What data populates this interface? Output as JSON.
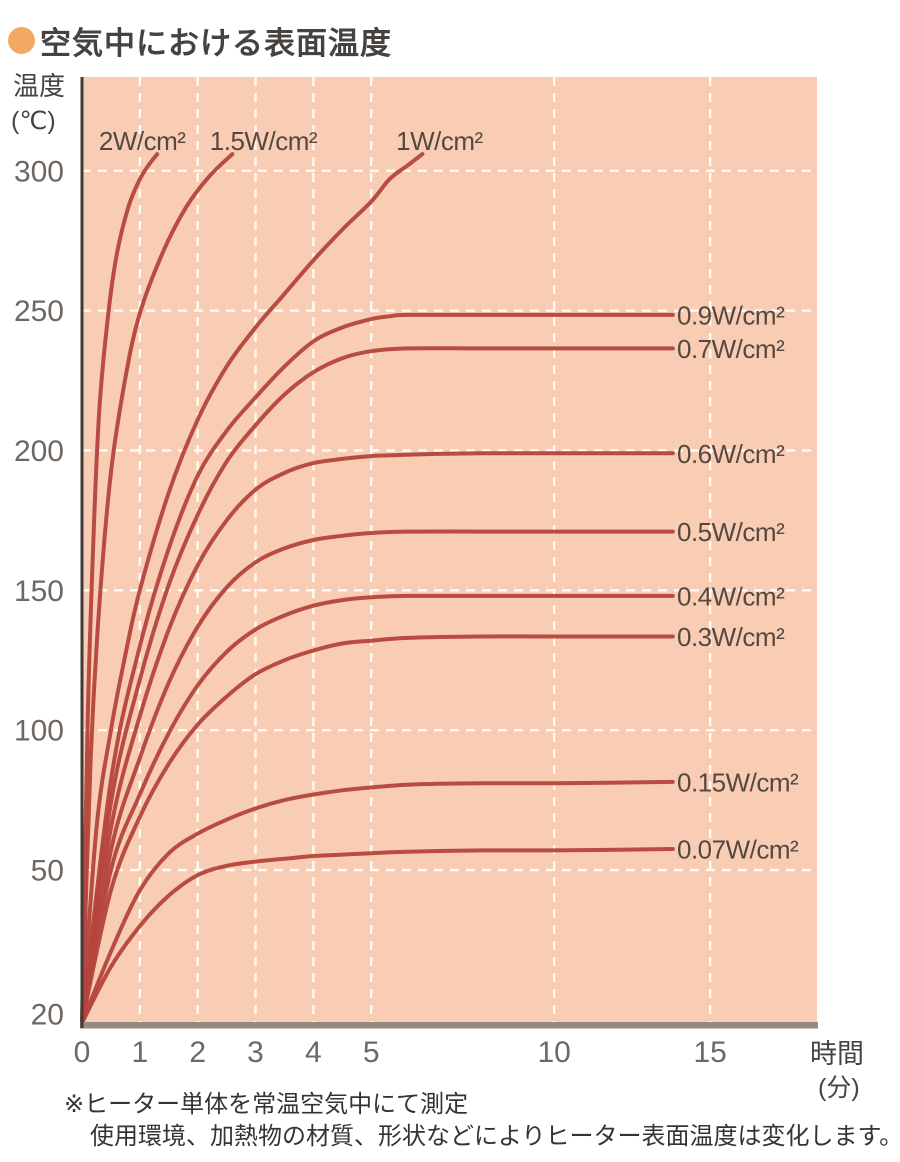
{
  "header": {
    "title": "空気中における表面温度"
  },
  "axes": {
    "y_name": "温度",
    "y_unit": "(℃)",
    "x_name": "時間",
    "x_unit": "(分)"
  },
  "footnotes": {
    "line1": "※ヒーター単体を常温空気中にて測定",
    "line2": "使用環境、加熱物の材質、形状などによりヒーター表面温度は変化します。"
  },
  "colors": {
    "bullet": "#f4a963",
    "plot_bg": "#f8cdb4",
    "grid": "#ffffff",
    "curve": "#b4453d",
    "y_axis": "#413c3a",
    "x_axis_bar": "#958983",
    "tick_text": "#6e6762",
    "curve_label_text": "#564840"
  },
  "chart_data": {
    "type": "line",
    "title": "空気中における表面温度",
    "xlabel": "時間(分)",
    "ylabel": "温度(℃)",
    "x_ticks": [
      0,
      1,
      2,
      3,
      4,
      5,
      10,
      15
    ],
    "y_ticks": [
      300,
      250,
      200,
      150,
      100,
      50,
      20
    ],
    "xlim": [
      0,
      15.8
    ],
    "ylim": [
      20,
      310
    ],
    "grid": "white dashed, on",
    "legend_position": "labels at line ends",
    "x_scale_note": "x axis compressed beyond 5 minutes",
    "start_temperature": 20,
    "series": [
      {
        "name": "2W/cm²",
        "exits_top": true,
        "points": [
          [
            0,
            20
          ],
          [
            0.1,
            105
          ],
          [
            0.2,
            170
          ],
          [
            0.3,
            215
          ],
          [
            0.45,
            248
          ],
          [
            0.6,
            270
          ],
          [
            0.8,
            287
          ],
          [
            1,
            297
          ],
          [
            1.15,
            302
          ],
          [
            1.3,
            306
          ]
        ]
      },
      {
        "name": "1.5W/cm²",
        "exits_top": true,
        "points": [
          [
            0,
            20
          ],
          [
            0.15,
            90
          ],
          [
            0.3,
            145
          ],
          [
            0.5,
            192
          ],
          [
            0.75,
            226
          ],
          [
            1,
            249
          ],
          [
            1.4,
            271
          ],
          [
            1.8,
            287
          ],
          [
            2.2,
            298
          ],
          [
            2.6,
            306
          ]
        ]
      },
      {
        "name": "1W/cm²",
        "exits_top": true,
        "points": [
          [
            0,
            20
          ],
          [
            0.25,
            65
          ],
          [
            0.5,
            100
          ],
          [
            0.75,
            127
          ],
          [
            1,
            150
          ],
          [
            1.5,
            185
          ],
          [
            2,
            211
          ],
          [
            2.5,
            230
          ],
          [
            3,
            244
          ],
          [
            3.5,
            256
          ],
          [
            4,
            268
          ],
          [
            4.5,
            279
          ],
          [
            5,
            289
          ],
          [
            5.5,
            297
          ],
          [
            6,
            302
          ],
          [
            6.4,
            306
          ]
        ]
      },
      {
        "name": "0.9W/cm²",
        "plateau": 248,
        "points": [
          [
            0,
            20
          ],
          [
            0.5,
            82
          ],
          [
            1,
            130
          ],
          [
            1.5,
            165
          ],
          [
            2,
            191
          ],
          [
            2.5,
            207
          ],
          [
            3,
            219
          ],
          [
            3.5,
            230
          ],
          [
            4,
            239
          ],
          [
            4.5,
            244
          ],
          [
            5,
            247
          ],
          [
            5.5,
            248
          ],
          [
            6,
            248.5
          ],
          [
            8,
            248.5
          ],
          [
            10,
            248.5
          ],
          [
            13.8,
            248.5
          ]
        ]
      },
      {
        "name": "0.7W/cm²",
        "plateau": 236,
        "points": [
          [
            0,
            20
          ],
          [
            0.5,
            74
          ],
          [
            1,
            118
          ],
          [
            1.5,
            152
          ],
          [
            2,
            177
          ],
          [
            2.5,
            196
          ],
          [
            3,
            209
          ],
          [
            3.5,
            220
          ],
          [
            4,
            228
          ],
          [
            4.5,
            233
          ],
          [
            5,
            235.5
          ],
          [
            6,
            236.5
          ],
          [
            8,
            236.5
          ],
          [
            10,
            236.5
          ],
          [
            13.8,
            236.5
          ]
        ]
      },
      {
        "name": "0.6W/cm²",
        "plateau": 199,
        "points": [
          [
            0,
            20
          ],
          [
            0.5,
            65
          ],
          [
            1,
            105
          ],
          [
            1.5,
            136
          ],
          [
            2,
            159
          ],
          [
            2.5,
            175
          ],
          [
            3,
            186
          ],
          [
            3.5,
            192
          ],
          [
            4,
            195.5
          ],
          [
            4.5,
            197
          ],
          [
            5,
            198
          ],
          [
            6,
            198.5
          ],
          [
            8,
            199
          ],
          [
            10,
            199
          ],
          [
            13.8,
            199
          ]
        ]
      },
      {
        "name": "0.5W/cm²",
        "plateau": 171,
        "points": [
          [
            0,
            20
          ],
          [
            0.5,
            57
          ],
          [
            1,
            90
          ],
          [
            1.5,
            117
          ],
          [
            2,
            137
          ],
          [
            2.5,
            151
          ],
          [
            3,
            160
          ],
          [
            3.5,
            165
          ],
          [
            4,
            168
          ],
          [
            4.5,
            169.5
          ],
          [
            5,
            170.5
          ],
          [
            6,
            171
          ],
          [
            8,
            171
          ],
          [
            10,
            171
          ],
          [
            13.8,
            171
          ]
        ]
      },
      {
        "name": "0.4W/cm²",
        "plateau": 148,
        "points": [
          [
            0,
            20
          ],
          [
            0.5,
            50
          ],
          [
            1,
            77
          ],
          [
            1.5,
            99
          ],
          [
            2,
            116
          ],
          [
            2.5,
            128
          ],
          [
            3,
            136
          ],
          [
            3.5,
            141
          ],
          [
            4,
            144.5
          ],
          [
            4.5,
            146.5
          ],
          [
            5,
            147.5
          ],
          [
            6,
            148
          ],
          [
            8,
            148
          ],
          [
            10,
            148
          ],
          [
            13.8,
            148
          ]
        ]
      },
      {
        "name": "0.3W/cm²",
        "plateau": 133,
        "points": [
          [
            0,
            20
          ],
          [
            0.5,
            46
          ],
          [
            1,
            69
          ],
          [
            1.5,
            88
          ],
          [
            2,
            102
          ],
          [
            2.5,
            112
          ],
          [
            3,
            120
          ],
          [
            3.5,
            125
          ],
          [
            4,
            128.5
          ],
          [
            4.5,
            131
          ],
          [
            5,
            132
          ],
          [
            6,
            133
          ],
          [
            8,
            133.5
          ],
          [
            10,
            133.5
          ],
          [
            13.8,
            133.5
          ]
        ]
      },
      {
        "name": "0.15W/cm²",
        "plateau": 81,
        "points": [
          [
            0,
            20
          ],
          [
            0.5,
            34
          ],
          [
            1,
            46
          ],
          [
            1.5,
            56
          ],
          [
            2,
            63
          ],
          [
            2.5,
            68
          ],
          [
            3,
            72
          ],
          [
            3.5,
            75
          ],
          [
            4,
            77
          ],
          [
            4.5,
            78.5
          ],
          [
            5,
            79.5
          ],
          [
            6,
            80.5
          ],
          [
            8,
            81
          ],
          [
            10,
            81
          ],
          [
            13.8,
            81.5
          ]
        ]
      },
      {
        "name": "0.07W/cm²",
        "plateau": 57,
        "points": [
          [
            0,
            20
          ],
          [
            0.5,
            31
          ],
          [
            1,
            39
          ],
          [
            1.5,
            45
          ],
          [
            2,
            49
          ],
          [
            2.5,
            51.5
          ],
          [
            3,
            53
          ],
          [
            3.5,
            54
          ],
          [
            4,
            55
          ],
          [
            4.5,
            55.5
          ],
          [
            5,
            56
          ],
          [
            6,
            56.5
          ],
          [
            8,
            57
          ],
          [
            10,
            57
          ],
          [
            13.8,
            57.5
          ]
        ]
      }
    ]
  }
}
